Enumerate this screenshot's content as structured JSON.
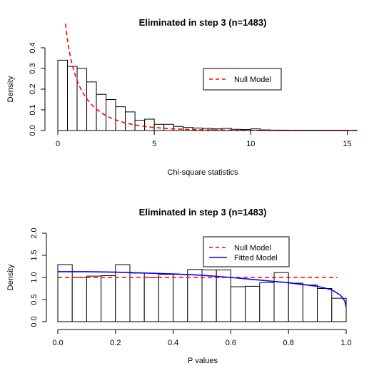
{
  "chart_data": [
    {
      "type": "histogram",
      "title": "Eliminated in step 3 (n=1483)",
      "xlabel": "Chi-square statistics",
      "ylabel": "Density",
      "xlim": [
        0,
        15.5
      ],
      "ylim": [
        0,
        0.4
      ],
      "x_ticks": [
        "0",
        "5",
        "10",
        "15"
      ],
      "y_ticks": [
        "0.0",
        "0.1",
        "0.2",
        "0.3",
        "0.4"
      ],
      "bin_width": 0.5,
      "bins": [
        {
          "x0": 0.0,
          "x1": 0.5,
          "density": 0.34
        },
        {
          "x0": 0.5,
          "x1": 1.0,
          "density": 0.31
        },
        {
          "x0": 1.0,
          "x1": 1.5,
          "density": 0.3
        },
        {
          "x0": 1.5,
          "x1": 2.0,
          "density": 0.235
        },
        {
          "x0": 2.0,
          "x1": 2.5,
          "density": 0.175
        },
        {
          "x0": 2.5,
          "x1": 3.0,
          "density": 0.15
        },
        {
          "x0": 3.0,
          "x1": 3.5,
          "density": 0.115
        },
        {
          "x0": 3.5,
          "x1": 4.0,
          "density": 0.09
        },
        {
          "x0": 4.0,
          "x1": 4.5,
          "density": 0.05
        },
        {
          "x0": 4.5,
          "x1": 5.0,
          "density": 0.055
        },
        {
          "x0": 5.0,
          "x1": 5.5,
          "density": 0.03
        },
        {
          "x0": 5.5,
          "x1": 6.0,
          "density": 0.03
        },
        {
          "x0": 6.0,
          "x1": 6.5,
          "density": 0.02
        },
        {
          "x0": 6.5,
          "x1": 7.0,
          "density": 0.015
        },
        {
          "x0": 7.0,
          "x1": 7.5,
          "density": 0.012
        },
        {
          "x0": 7.5,
          "x1": 8.0,
          "density": 0.01
        },
        {
          "x0": 8.0,
          "x1": 8.5,
          "density": 0.008
        },
        {
          "x0": 8.5,
          "x1": 9.0,
          "density": 0.01
        },
        {
          "x0": 9.0,
          "x1": 9.5,
          "density": 0.006
        },
        {
          "x0": 9.5,
          "x1": 10.0,
          "density": 0.005
        },
        {
          "x0": 10.0,
          "x1": 10.5,
          "density": 0.008
        },
        {
          "x0": 10.5,
          "x1": 11.0,
          "density": 0.003
        },
        {
          "x0": 11.0,
          "x1": 11.5,
          "density": 0.002
        },
        {
          "x0": 11.5,
          "x1": 12.0,
          "density": 0.002
        },
        {
          "x0": 12.0,
          "x1": 12.5,
          "density": 0.001
        },
        {
          "x0": 12.5,
          "x1": 13.0,
          "density": 0.001
        },
        {
          "x0": 13.0,
          "x1": 13.5,
          "density": 0.001
        },
        {
          "x0": 13.5,
          "x1": 14.0,
          "density": 0.001
        },
        {
          "x0": 14.0,
          "x1": 14.5,
          "density": 0.001
        },
        {
          "x0": 14.5,
          "x1": 15.0,
          "density": 0.001
        },
        {
          "x0": 15.0,
          "x1": 15.5,
          "density": 0.001
        }
      ],
      "series": [
        {
          "name": "Null Model",
          "kind": "density-curve",
          "distribution": "chi-square, df=1",
          "color": "#ff0000",
          "dash": "dashed",
          "x_from": 0.4,
          "x_to": 15.5
        }
      ],
      "legend": {
        "entries": [
          "Null Model"
        ],
        "placement": "right"
      },
      "grid": false
    },
    {
      "type": "histogram",
      "title": "Eliminated in step 3 (n=1483)",
      "xlabel": "P values",
      "ylabel": "Density",
      "xlim": [
        0,
        1
      ],
      "ylim": [
        0,
        2
      ],
      "x_ticks": [
        "0.0",
        "0.2",
        "0.4",
        "0.6",
        "0.8",
        "1.0"
      ],
      "y_ticks": [
        "0.0",
        "0.5",
        "1.0",
        "1.5",
        "2.0"
      ],
      "bin_width": 0.05,
      "bins": [
        {
          "x0": 0.0,
          "x1": 0.05,
          "density": 1.29
        },
        {
          "x0": 0.05,
          "x1": 0.1,
          "density": 1.0
        },
        {
          "x0": 0.1,
          "x1": 0.15,
          "density": 1.03
        },
        {
          "x0": 0.15,
          "x1": 0.2,
          "density": 1.04
        },
        {
          "x0": 0.2,
          "x1": 0.25,
          "density": 1.29
        },
        {
          "x0": 0.25,
          "x1": 0.3,
          "density": 1.1
        },
        {
          "x0": 0.3,
          "x1": 0.35,
          "density": 1.0
        },
        {
          "x0": 0.35,
          "x1": 0.4,
          "density": 1.07
        },
        {
          "x0": 0.4,
          "x1": 0.45,
          "density": 1.07
        },
        {
          "x0": 0.45,
          "x1": 0.5,
          "density": 1.18
        },
        {
          "x0": 0.5,
          "x1": 0.55,
          "density": 1.17
        },
        {
          "x0": 0.55,
          "x1": 0.6,
          "density": 1.17
        },
        {
          "x0": 0.6,
          "x1": 0.65,
          "density": 0.79
        },
        {
          "x0": 0.65,
          "x1": 0.7,
          "density": 0.8
        },
        {
          "x0": 0.7,
          "x1": 0.75,
          "density": 0.88
        },
        {
          "x0": 0.75,
          "x1": 0.8,
          "density": 1.11
        },
        {
          "x0": 0.8,
          "x1": 0.85,
          "density": 0.87
        },
        {
          "x0": 0.85,
          "x1": 0.9,
          "density": 0.83
        },
        {
          "x0": 0.9,
          "x1": 0.95,
          "density": 0.75
        },
        {
          "x0": 0.95,
          "x1": 1.0,
          "density": 0.53
        }
      ],
      "series": [
        {
          "name": "Null Model",
          "kind": "constant",
          "y": 1.0,
          "color": "#ff0000",
          "dash": "dashed",
          "x_from": 0.0,
          "x_to": 0.97
        },
        {
          "name": "Fitted Model",
          "kind": "fitted-curve",
          "color": "#0000ff",
          "dash": "solid",
          "points": [
            [
              0.0,
              1.13
            ],
            [
              0.1,
              1.13
            ],
            [
              0.2,
              1.12
            ],
            [
              0.3,
              1.1
            ],
            [
              0.4,
              1.08
            ],
            [
              0.5,
              1.05
            ],
            [
              0.6,
              1.0
            ],
            [
              0.7,
              0.94
            ],
            [
              0.8,
              0.88
            ],
            [
              0.9,
              0.8
            ],
            [
              0.95,
              0.72
            ],
            [
              0.98,
              0.6
            ],
            [
              0.995,
              0.47
            ],
            [
              1.0,
              0.33
            ]
          ]
        }
      ],
      "legend": {
        "entries": [
          "Null Model",
          "Fitted Model"
        ],
        "placement": "top-right"
      },
      "grid": false
    }
  ]
}
